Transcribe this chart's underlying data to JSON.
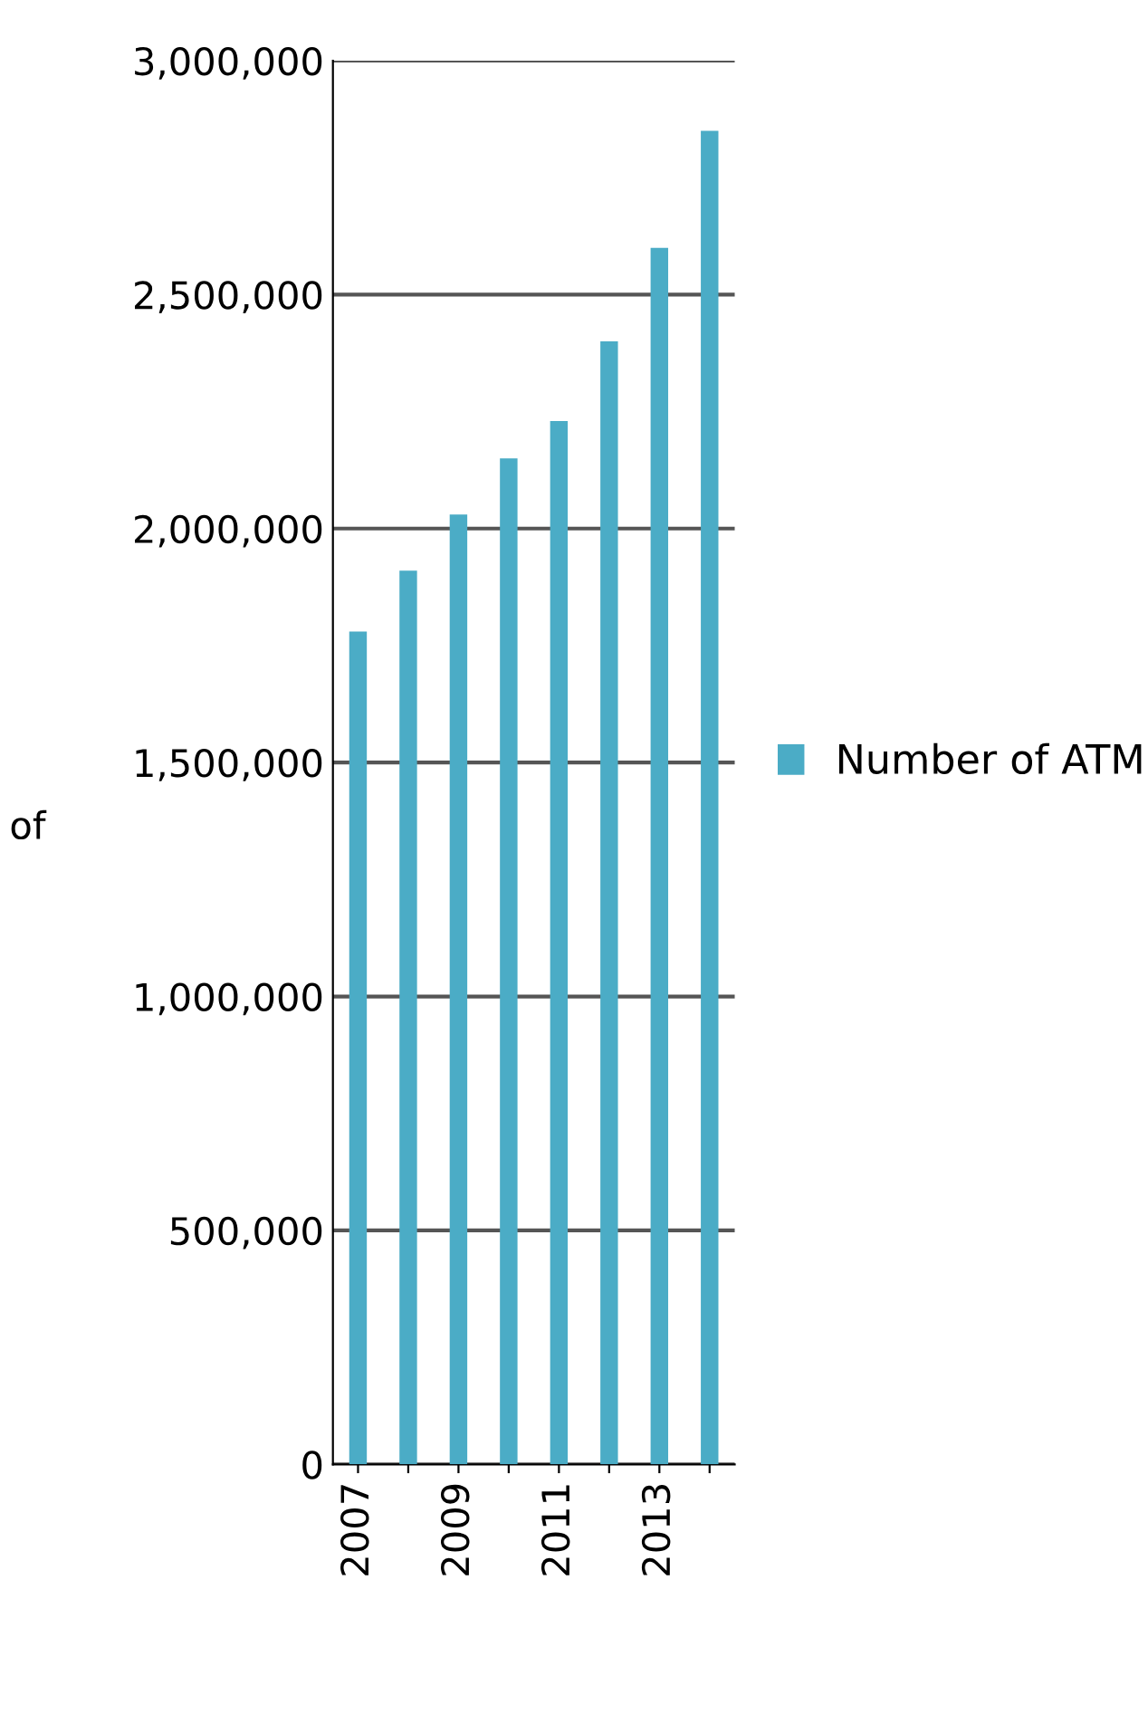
{
  "chart_data": {
    "type": "bar",
    "ylabel": "of",
    "categories": [
      "2007",
      null,
      "2009",
      null,
      "2011",
      null,
      "2013",
      null
    ],
    "series": [
      {
        "name": "Number of ATM",
        "color": "#4bacc6",
        "values": [
          1780000,
          1910000,
          2030000,
          2150000,
          2230000,
          2400000,
          2600000,
          2850000
        ]
      }
    ],
    "ylim": [
      0,
      3000000
    ],
    "yticks": [
      {
        "value": 0,
        "label": "0"
      },
      {
        "value": 500000,
        "label": "500,000"
      },
      {
        "value": 1000000,
        "label": "1,000,000"
      },
      {
        "value": 1500000,
        "label": "1,500,000"
      },
      {
        "value": 2000000,
        "label": "2,000,000"
      },
      {
        "value": 2500000,
        "label": "2,500,000"
      },
      {
        "value": 3000000,
        "label": "3,000,000"
      }
    ],
    "grid": "y",
    "legend": "right"
  }
}
